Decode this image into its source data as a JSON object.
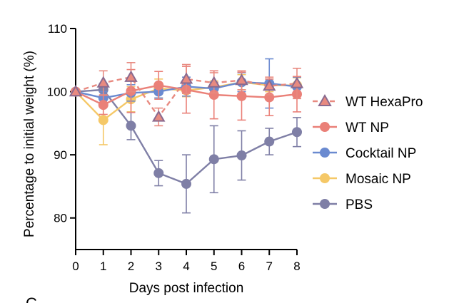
{
  "chart_data": {
    "type": "line",
    "title": "",
    "xlabel": "Days post infection",
    "ylabel": "Percentage to initial weight (%)",
    "panel_label": "C",
    "x": [
      0,
      1,
      2,
      3,
      4,
      5,
      6,
      7,
      8
    ],
    "xticks": [
      "0",
      "1",
      "2",
      "3",
      "4",
      "5",
      "6",
      "7",
      "8"
    ],
    "xlim": [
      0,
      8
    ],
    "ylim": [
      75,
      110
    ],
    "yticks": [
      {
        "value": 80,
        "label": "80"
      },
      {
        "value": 90,
        "label": "90"
      },
      {
        "value": 100,
        "label": "100"
      },
      {
        "value": 110,
        "label": "110"
      }
    ],
    "legend_position": "right",
    "series": [
      {
        "name": "PBS",
        "color": "#7f7fa6",
        "dashed": false,
        "marker": "circle",
        "values": [
          100,
          100.3,
          94.6,
          87.1,
          85.4,
          89.3,
          89.9,
          92.1,
          93.6
        ],
        "errors": [
          0,
          1.0,
          2.2,
          2.0,
          4.6,
          5.3,
          3.9,
          2.1,
          2.3
        ]
      },
      {
        "name": "Mosaic NP",
        "color": "#f5c867",
        "dashed": false,
        "marker": "circle",
        "values": [
          100,
          95.5,
          98.8,
          100.5,
          100.2,
          100.7,
          101.5,
          101.0,
          101.0
        ],
        "errors": [
          0,
          3.9,
          2.0,
          1.5,
          1.0,
          1.0,
          1.2,
          1.0,
          1.2
        ]
      },
      {
        "name": "Cocktail NP",
        "color": "#6a8ad0",
        "dashed": false,
        "marker": "circle",
        "values": [
          100,
          99.0,
          99.8,
          100.0,
          100.8,
          100.5,
          101.5,
          101.3,
          100.8
        ],
        "errors": [
          0,
          1.0,
          1.3,
          1.0,
          1.5,
          1.0,
          1.5,
          3.9,
          1.5
        ]
      },
      {
        "name": "WT NP",
        "color": "#ea8078",
        "dashed": false,
        "marker": "circle",
        "values": [
          100,
          97.9,
          100.1,
          101.0,
          100.3,
          99.5,
          99.3,
          99.1,
          99.6
        ],
        "errors": [
          0,
          1.5,
          3.4,
          2.2,
          3.7,
          3.8,
          3.8,
          2.9,
          2.8
        ]
      },
      {
        "name": "WT HexaPro",
        "color": "#e88a80",
        "marker_fill": "#e88a80",
        "marker_stroke": "#8a6a8f",
        "dashed": true,
        "marker": "triangle",
        "values": [
          100,
          101.4,
          102.3,
          96.0,
          102.0,
          101.4,
          101.8,
          100.9,
          101.3
        ],
        "errors": [
          0,
          1.9,
          2.3,
          1.4,
          2.3,
          1.6,
          1.5,
          1.4,
          2.4
        ]
      }
    ],
    "legend_order": [
      "WT HexaPro",
      "WT NP",
      "Cocktail NP",
      "Mosaic NP",
      "PBS"
    ]
  }
}
